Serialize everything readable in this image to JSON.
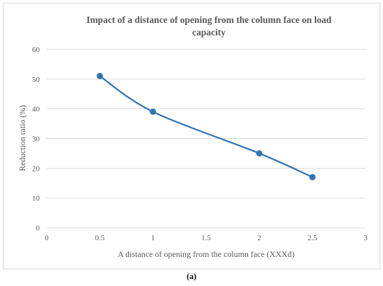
{
  "caption": "(a)",
  "colors": {
    "series": "#2e74b5",
    "grid": "#d9d9d9",
    "text": "#595959"
  },
  "chart_data": {
    "type": "line",
    "title_lines": [
      "Impact of a distance of opening from the column face on load",
      "capacity"
    ],
    "xlabel": "A distance of opening from the column face (XXXd)",
    "ylabel": "Reduction ratio (%)",
    "xlim": [
      0,
      3
    ],
    "ylim": [
      0,
      60
    ],
    "x_ticks": [
      0,
      0.5,
      1,
      1.5,
      2,
      2.5,
      3
    ],
    "y_ticks": [
      0,
      10,
      20,
      30,
      40,
      50,
      60
    ],
    "grid": "horizontal",
    "smooth": true,
    "marker": "circle",
    "series": [
      {
        "x": [
          0.5,
          1,
          2,
          2.5
        ],
        "values": [
          51,
          39,
          25,
          17
        ]
      }
    ]
  }
}
